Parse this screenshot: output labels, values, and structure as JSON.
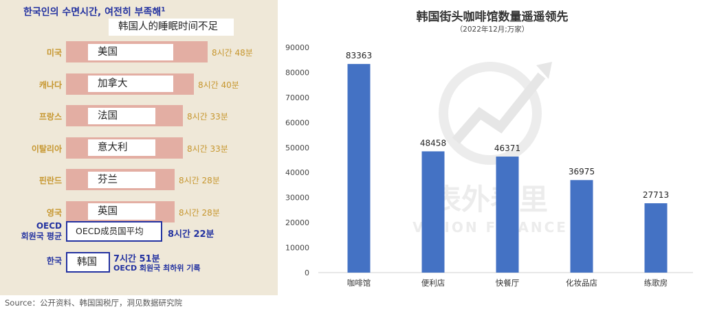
{
  "left_panel": {
    "title_ko": "한국인의 수면시간, 여전히 부족해",
    "title_sup": "1",
    "subtitle_zh": "韩国人的睡眠时间不足",
    "rows": [
      {
        "name_ko": "미국",
        "name_zh": "美国",
        "value_label": "8시간 48분",
        "hours": 8.8
      },
      {
        "name_ko": "캐나다",
        "name_zh": "加拿大",
        "value_label": "8시간 40분",
        "hours": 8.667
      },
      {
        "name_ko": "프랑스",
        "name_zh": "法国",
        "value_label": "8시간 33분",
        "hours": 8.55
      },
      {
        "name_ko": "이탈리아",
        "name_zh": "意大利",
        "value_label": "8시간 33분",
        "hours": 8.55
      },
      {
        "name_ko": "핀란드",
        "name_zh": "芬兰",
        "value_label": "8시간 28분",
        "hours": 8.467
      },
      {
        "name_ko": "영국",
        "name_zh": "英国",
        "value_label": "8시간 28분",
        "hours": 8.467
      }
    ],
    "oecd": {
      "name_ko_line1": "OECD",
      "name_ko_line2": "회원국 평균",
      "name_zh": "OECD成员国平均",
      "value_label": "8시간 22분",
      "hours": 8.367
    },
    "korea": {
      "name_ko": "한국",
      "name_zh": "韩国",
      "value_label": "7시간 51분",
      "note": "OECD 회원국 최하위 기록",
      "hours": 7.85
    }
  },
  "chart_data": {
    "type": "bar",
    "title": "韩国街头咖啡馆数量遥遥领先",
    "subtitle": "（2022年12月;万家）",
    "categories": [
      "咖啡馆",
      "便利店",
      "快餐厅",
      "化妆品店",
      "练歌房"
    ],
    "values": [
      83363,
      48458,
      46371,
      36975,
      27713
    ],
    "ylim": [
      0,
      90000
    ],
    "yticks": [
      0,
      10000,
      20000,
      30000,
      40000,
      50000,
      60000,
      70000,
      80000,
      90000
    ],
    "grid": false,
    "legend": "none",
    "bar_color": "#4472c4"
  },
  "watermark": {
    "line1": "表外表里",
    "line2": "VISION FINANCE"
  },
  "source": "Source：公开资料、韩国国税厅，洞见数据研究院"
}
